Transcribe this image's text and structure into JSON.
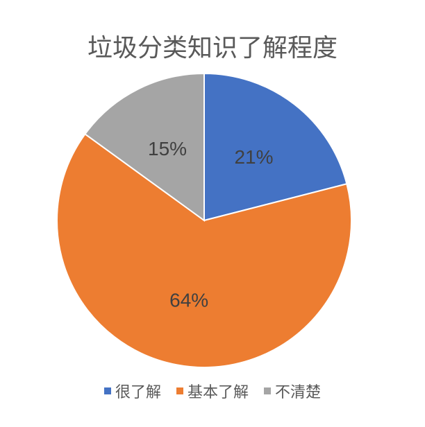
{
  "chart_data": {
    "type": "pie",
    "title": "垃圾分类知识了解程度",
    "categories": [
      "很了解",
      "基本了解",
      "不清楚"
    ],
    "values": [
      21,
      64,
      15
    ],
    "data_labels": [
      "21%",
      "64%",
      "15%"
    ],
    "colors": [
      "#4472C4",
      "#ED7D31",
      "#A5A5A5"
    ],
    "start": "top, clockwise",
    "legend_position": "bottom"
  }
}
